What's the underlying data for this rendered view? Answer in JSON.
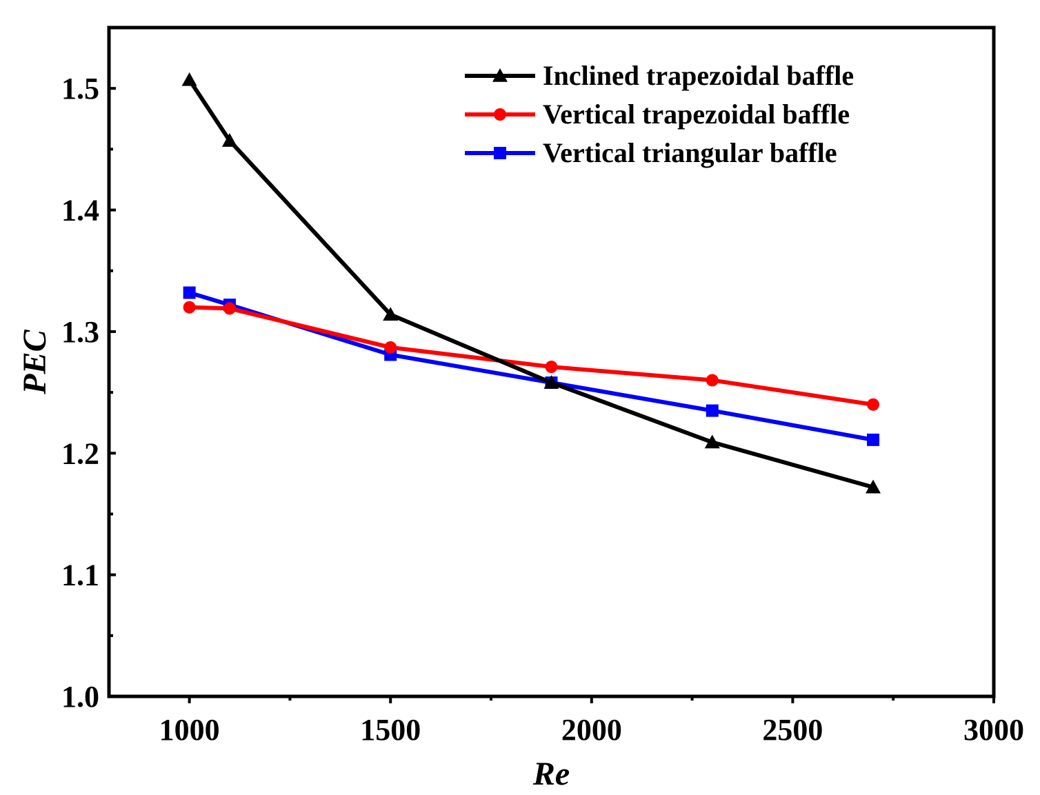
{
  "chart_data": {
    "type": "line",
    "title": "",
    "xlabel": "Re",
    "ylabel": "PEC",
    "xlim": [
      800,
      3000
    ],
    "ylim": [
      1.0,
      1.55
    ],
    "xticks": [
      1000,
      1500,
      2000,
      2500,
      3000
    ],
    "xtick_labels": [
      "1000",
      "1500",
      "2000",
      "2500",
      "3000"
    ],
    "yticks": [
      1.0,
      1.1,
      1.2,
      1.3,
      1.4,
      1.5
    ],
    "ytick_labels": [
      "1.0",
      "1.1",
      "1.2",
      "1.3",
      "1.4",
      "1.5"
    ],
    "grid": false,
    "legend_position": "top-right",
    "series": [
      {
        "name": "Inclined trapezoidal baffle",
        "color": "#000000",
        "marker": "triangle",
        "x": [
          1000,
          1100,
          1500,
          1900,
          2300,
          2700
        ],
        "values": [
          1.507,
          1.457,
          1.314,
          1.258,
          1.209,
          1.172
        ]
      },
      {
        "name": "Vertical trapezoidal baffle",
        "color": "#ff0000",
        "marker": "circle",
        "x": [
          1000,
          1100,
          1500,
          1900,
          2300,
          2700
        ],
        "values": [
          1.32,
          1.319,
          1.287,
          1.271,
          1.26,
          1.24
        ]
      },
      {
        "name": "Vertical triangular baffle",
        "color": "#0000ff",
        "marker": "square",
        "x": [
          1000,
          1100,
          1500,
          1900,
          2300,
          2700
        ],
        "values": [
          1.332,
          1.322,
          1.281,
          1.258,
          1.235,
          1.211
        ]
      }
    ]
  }
}
